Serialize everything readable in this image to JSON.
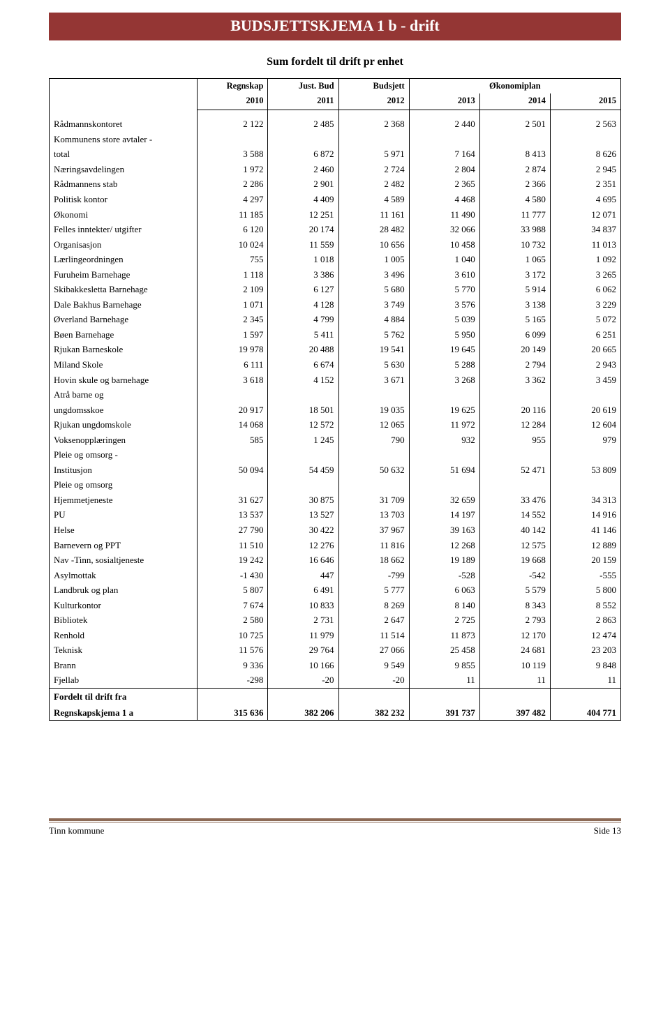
{
  "title": "BUDSJETTSKJEMA 1 b - drift",
  "subtitle": "Sum fordelt til drift pr enhet",
  "header": {
    "blank": "",
    "regnskap": "Regnskap",
    "regnskap_year": "2010",
    "justbud": "Just. Bud",
    "justbud_year": "2011",
    "budsjett": "Budsjett",
    "budsjett_year": "2012",
    "okonomiplan": "Økonomiplan",
    "y2013": "2013",
    "y2014": "2014",
    "y2015": "2015"
  },
  "rows": [
    {
      "label": "Rådmannskontoret",
      "v": [
        "2 122",
        "2 485",
        "2 368",
        "2 440",
        "2 501",
        "2 563"
      ]
    },
    {
      "label": "Kommunens store avtaler -",
      "v": [
        "",
        "",
        "",
        "",
        "",
        ""
      ]
    },
    {
      "label": "total",
      "v": [
        "3 588",
        "6 872",
        "5 971",
        "7 164",
        "8 413",
        "8 626"
      ]
    },
    {
      "label": "Næringsavdelingen",
      "v": [
        "1 972",
        "2 460",
        "2 724",
        "2 804",
        "2 874",
        "2 945"
      ]
    },
    {
      "label": "Rådmannens stab",
      "v": [
        "2 286",
        "2 901",
        "2 482",
        "2 365",
        "2 366",
        "2 351"
      ]
    },
    {
      "label": "Politisk kontor",
      "v": [
        "4 297",
        "4 409",
        "4 589",
        "4 468",
        "4 580",
        "4 695"
      ]
    },
    {
      "label": "Økonomi",
      "v": [
        "11 185",
        "12 251",
        "11 161",
        "11 490",
        "11 777",
        "12 071"
      ]
    },
    {
      "label": "Felles inntekter/ utgifter",
      "v": [
        "6 120",
        "20 174",
        "28 482",
        "32 066",
        "33 988",
        "34 837"
      ]
    },
    {
      "label": "Organisasjon",
      "v": [
        "10 024",
        "11 559",
        "10 656",
        "10 458",
        "10 732",
        "11 013"
      ]
    },
    {
      "label": "Lærlingeordningen",
      "v": [
        "755",
        "1 018",
        "1 005",
        "1 040",
        "1 065",
        "1 092"
      ]
    },
    {
      "label": "Furuheim Barnehage",
      "v": [
        "1 118",
        "3 386",
        "3 496",
        "3 610",
        "3 172",
        "3 265"
      ]
    },
    {
      "label": "Skibakkesletta Barnehage",
      "v": [
        "2 109",
        "6 127",
        "5 680",
        "5 770",
        "5 914",
        "6 062"
      ]
    },
    {
      "label": "Dale Bakhus Barnehage",
      "v": [
        "1 071",
        "4 128",
        "3 749",
        "3 576",
        "3 138",
        "3 229"
      ]
    },
    {
      "label": "Øverland Barnehage",
      "v": [
        "2 345",
        "4 799",
        "4 884",
        "5 039",
        "5 165",
        "5 072"
      ]
    },
    {
      "label": "Bøen Barnehage",
      "v": [
        "1 597",
        "5 411",
        "5 762",
        "5 950",
        "6 099",
        "6 251"
      ]
    },
    {
      "label": "Rjukan Barneskole",
      "v": [
        "19 978",
        "20 488",
        "19 541",
        "19 645",
        "20 149",
        "20 665"
      ]
    },
    {
      "label": "Miland Skole",
      "v": [
        "6 111",
        "6 674",
        "5 630",
        "5 288",
        "2 794",
        "2 943"
      ]
    },
    {
      "label": "Hovin skule og barnehage",
      "v": [
        "3 618",
        "4 152",
        "3 671",
        "3 268",
        "3 362",
        "3 459"
      ]
    },
    {
      "label": "Atrå barne og",
      "v": [
        "",
        "",
        "",
        "",
        "",
        ""
      ]
    },
    {
      "label": "ungdomsskoe",
      "v": [
        "20 917",
        "18 501",
        "19 035",
        "19 625",
        "20 116",
        "20 619"
      ]
    },
    {
      "label": "Rjukan ungdomskole",
      "v": [
        "14 068",
        "12 572",
        "12 065",
        "11 972",
        "12 284",
        "12 604"
      ]
    },
    {
      "label": "Voksenopplæringen",
      "v": [
        "585",
        "1 245",
        "790",
        "932",
        "955",
        "979"
      ]
    },
    {
      "label": "Pleie og omsorg -",
      "v": [
        "",
        "",
        "",
        "",
        "",
        ""
      ]
    },
    {
      "label": "Institusjon",
      "v": [
        "50 094",
        "54 459",
        "50 632",
        "51 694",
        "52 471",
        "53 809"
      ]
    },
    {
      "label": "Pleie og omsorg",
      "v": [
        "",
        "",
        "",
        "",
        "",
        ""
      ]
    },
    {
      "label": "Hjemmetjeneste",
      "v": [
        "31 627",
        "30 875",
        "31 709",
        "32 659",
        "33 476",
        "34 313"
      ]
    },
    {
      "label": "PU",
      "v": [
        "13 537",
        "13 527",
        "13 703",
        "14 197",
        "14 552",
        "14 916"
      ]
    },
    {
      "label": "Helse",
      "v": [
        "27 790",
        "30 422",
        "37 967",
        "39 163",
        "40 142",
        "41 146"
      ]
    },
    {
      "label": "Barnevern og PPT",
      "v": [
        "11 510",
        "12 276",
        "11 816",
        "12 268",
        "12 575",
        "12 889"
      ]
    },
    {
      "label": "Nav -Tinn, sosialtjeneste",
      "v": [
        "19 242",
        "16 646",
        "18 662",
        "19 189",
        "19 668",
        "20 159"
      ]
    },
    {
      "label": "Asylmottak",
      "v": [
        "-1 430",
        "447",
        "-799",
        "-528",
        "-542",
        "-555"
      ]
    },
    {
      "label": "Landbruk og plan",
      "v": [
        "5 807",
        "6 491",
        "5 777",
        "6 063",
        "5 579",
        "5 800"
      ]
    },
    {
      "label": "Kulturkontor",
      "v": [
        "7 674",
        "10 833",
        "8 269",
        "8 140",
        "8 343",
        "8 552"
      ]
    },
    {
      "label": "Bibliotek",
      "v": [
        "2 580",
        "2 731",
        "2 647",
        "2 725",
        "2 793",
        "2 863"
      ]
    },
    {
      "label": "Renhold",
      "v": [
        "10 725",
        "11 979",
        "11 514",
        "11 873",
        "12 170",
        "12 474"
      ]
    },
    {
      "label": "Teknisk",
      "v": [
        "11 576",
        "29 764",
        "27 066",
        "25 458",
        "24 681",
        "23 203"
      ]
    },
    {
      "label": "Brann",
      "v": [
        "9 336",
        "10 166",
        "9 549",
        "9 855",
        "10 119",
        "9 848"
      ]
    },
    {
      "label": "Fjellab",
      "v": [
        "-298",
        "-20",
        "-20",
        "11",
        "11",
        "11"
      ]
    }
  ],
  "total": {
    "label1": "Fordelt til drift fra",
    "label2": "Regnskapskjema 1 a",
    "v": [
      "315 636",
      "382 206",
      "382 232",
      "391 737",
      "397 482",
      "404 771"
    ]
  },
  "footer": {
    "left": "Tinn kommune",
    "right": "Side 13"
  }
}
